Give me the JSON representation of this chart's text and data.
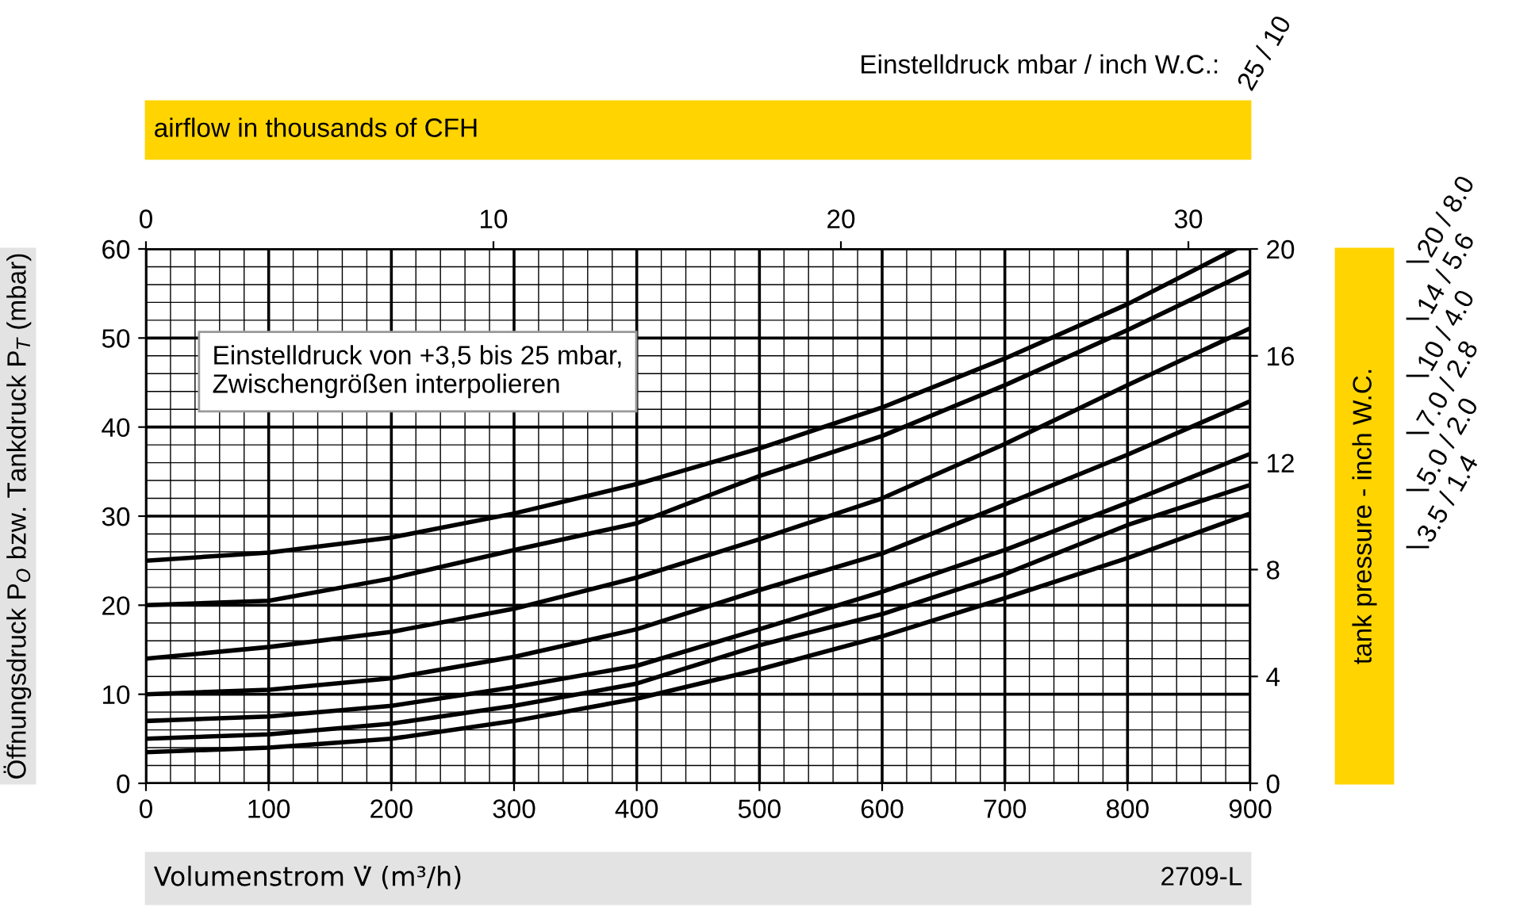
{
  "chart_data": {
    "type": "line",
    "xlabel": "Volumenstrom V̇ (m³/h)",
    "ylabel": "Öffnungsdruck P$_{O}$ bzw. Tankdruck P$_{T}$ (mbar)",
    "x2label": "airflow in thousands of CFH",
    "y2label": "tank pressure - inch W.C.",
    "legend_title": "Einstelldruck mbar / inch W.C.:",
    "annotations": [
      "Einstelldruck von +3,5 bis 25 mbar,\nZwischengrößen interpolieren",
      "2709-L"
    ],
    "x": [
      0,
      100,
      200,
      300,
      400,
      500,
      600,
      700,
      800,
      900
    ],
    "series": [
      {
        "name": "25 / 10",
        "color": "#000000",
        "x": [
          0,
          100,
          200,
          300,
          400,
          500,
          600,
          700,
          800,
          888
        ],
        "values": [
          25,
          25.9,
          27.6,
          30.3,
          33.6,
          37.6,
          42.2,
          47.7,
          53.8,
          60
        ]
      },
      {
        "name": "20 / 8.0",
        "color": "#000000",
        "values": [
          20,
          20.5,
          23,
          26.2,
          29.2,
          34.5,
          39,
          44.7,
          50.9,
          57.5
        ]
      },
      {
        "name": "14 / 5.6",
        "color": "#000000",
        "values": [
          14,
          15.3,
          17,
          19.6,
          23.1,
          27.4,
          32,
          38.1,
          44.7,
          51.1
        ]
      },
      {
        "name": "10 / 4.0",
        "color": "#000000",
        "values": [
          10,
          10.5,
          11.8,
          14.2,
          17.3,
          21.7,
          25.8,
          31.3,
          36.9,
          42.9
        ]
      },
      {
        "name": "7.0 / 2.8",
        "color": "#000000",
        "values": [
          7,
          7.5,
          8.7,
          10.8,
          13.2,
          17.3,
          21.5,
          26.2,
          31.5,
          37
        ]
      },
      {
        "name": "5.0 / 2.0",
        "color": "#000000",
        "values": [
          5,
          5.5,
          6.7,
          8.7,
          11.2,
          15.5,
          19,
          23.5,
          29,
          33.5
        ]
      },
      {
        "name": "3.5 / 1.4",
        "color": "#000000",
        "values": [
          3.5,
          4,
          5,
          7,
          9.5,
          12.8,
          16.5,
          20.8,
          25.3,
          30.3
        ]
      }
    ],
    "xlim": [
      0,
      900
    ],
    "xticks": [
      0,
      100,
      200,
      300,
      400,
      500,
      600,
      700,
      800,
      900
    ],
    "ylim": [
      0,
      60
    ],
    "yticks": [
      0,
      10,
      20,
      30,
      40,
      50,
      60
    ],
    "y2lim": [
      0,
      20
    ],
    "y2ticks": [
      0,
      4,
      8,
      12,
      16,
      20
    ],
    "x2lim": [
      0,
      31.78
    ],
    "x2ticks": [
      0,
      10,
      20,
      30
    ],
    "grid": true,
    "legend": "right",
    "line_style": "solid",
    "marker": "none"
  }
}
